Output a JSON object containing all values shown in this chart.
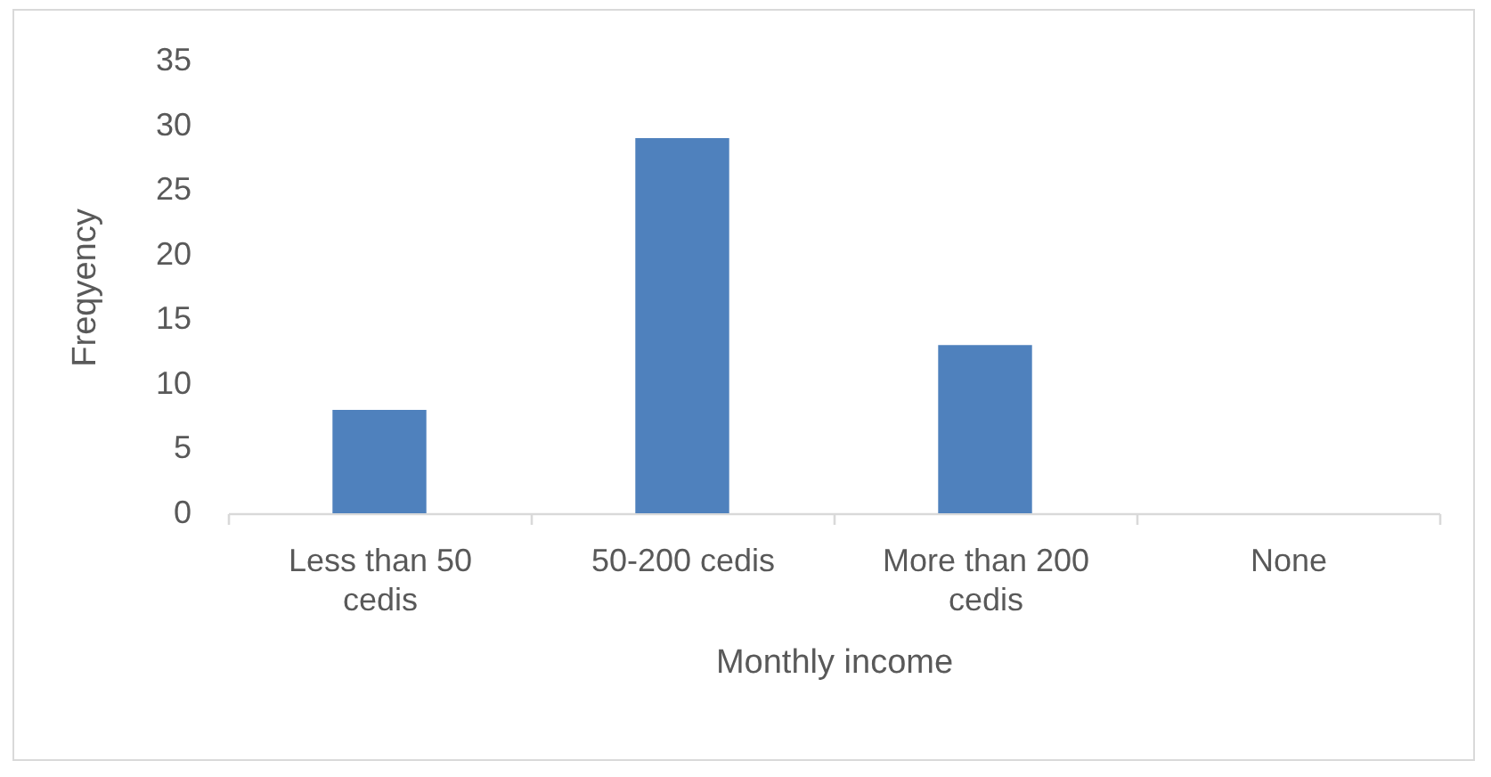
{
  "chart_data": {
    "type": "bar",
    "xlabel": "Monthly income",
    "ylabel": "Freqyency",
    "categories": [
      "Less than 50 cedis",
      "50-200 cedis",
      "More than 200 cedis",
      "None"
    ],
    "values": [
      8,
      29,
      13,
      0
    ],
    "color": "#4f81bd",
    "ylim": [
      0,
      35
    ],
    "yticks": [
      0,
      5,
      10,
      15,
      20,
      25,
      30,
      35
    ],
    "grid": false
  }
}
